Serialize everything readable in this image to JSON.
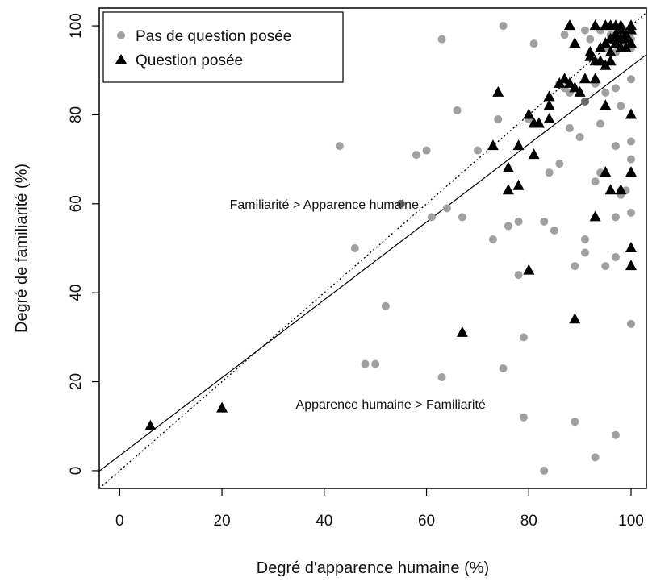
{
  "chart_data": {
    "type": "scatter",
    "title": "",
    "xlabel": "Degré d'apparence humaine (%)",
    "ylabel": "Degré de familiarité (%)",
    "xlim": [
      -4,
      103
    ],
    "ylim": [
      -4,
      104
    ],
    "xticks": [
      "0",
      "20",
      "40",
      "60",
      "80",
      "100"
    ],
    "yticks": [
      "0",
      "20",
      "40",
      "60",
      "80",
      "100"
    ],
    "grid": false,
    "legend_position": "top-left",
    "colors": {
      "no_question": "#a0a0a0",
      "no_question_dark": "#666666",
      "question": "#000000"
    },
    "series": [
      {
        "name": "Pas de question posée",
        "marker": "circle",
        "points": [
          [
            43,
            73
          ],
          [
            46,
            50
          ],
          [
            48,
            24
          ],
          [
            50,
            24
          ],
          [
            52,
            37
          ],
          [
            55,
            60
          ],
          [
            58,
            71
          ],
          [
            60,
            72
          ],
          [
            61,
            57
          ],
          [
            63,
            21
          ],
          [
            63,
            97
          ],
          [
            64,
            59
          ],
          [
            66,
            81
          ],
          [
            67,
            57
          ],
          [
            70,
            72
          ],
          [
            73,
            52
          ],
          [
            74,
            79
          ],
          [
            75,
            100
          ],
          [
            75,
            23
          ],
          [
            76,
            55
          ],
          [
            78,
            56
          ],
          [
            78,
            44
          ],
          [
            79,
            30
          ],
          [
            79,
            12
          ],
          [
            80,
            79
          ],
          [
            81,
            96
          ],
          [
            83,
            56
          ],
          [
            83,
            0
          ],
          [
            84,
            67
          ],
          [
            85,
            54
          ],
          [
            86,
            69
          ],
          [
            86,
            87
          ],
          [
            87,
            98
          ],
          [
            87,
            86
          ],
          [
            88,
            77
          ],
          [
            88,
            85
          ],
          [
            89,
            46
          ],
          [
            89,
            11
          ],
          [
            90,
            75
          ],
          [
            91,
            99
          ],
          [
            91,
            83
          ],
          [
            91,
            52
          ],
          [
            91,
            49
          ],
          [
            92,
            97
          ],
          [
            93,
            92
          ],
          [
            93,
            87
          ],
          [
            93,
            65
          ],
          [
            93,
            3
          ],
          [
            94,
            99
          ],
          [
            94,
            78
          ],
          [
            94,
            67
          ],
          [
            95,
            95
          ],
          [
            95,
            85
          ],
          [
            95,
            46
          ],
          [
            96,
            97
          ],
          [
            96,
            98
          ],
          [
            97,
            94
          ],
          [
            97,
            86
          ],
          [
            97,
            73
          ],
          [
            97,
            57
          ],
          [
            97,
            48
          ],
          [
            97,
            8
          ],
          [
            98,
            96
          ],
          [
            98,
            82
          ],
          [
            98,
            62
          ],
          [
            98,
            63
          ],
          [
            99,
            99
          ],
          [
            99,
            63
          ],
          [
            100,
            97
          ],
          [
            100,
            88
          ],
          [
            100,
            74
          ],
          [
            100,
            70
          ],
          [
            100,
            58
          ],
          [
            100,
            33
          ],
          [
            100,
            95
          ]
        ]
      },
      {
        "name": "Question posée",
        "marker": "triangle",
        "points": [
          [
            6,
            10
          ],
          [
            20,
            14
          ],
          [
            67,
            31
          ],
          [
            73,
            73
          ],
          [
            74,
            85
          ],
          [
            76,
            68
          ],
          [
            76,
            63
          ],
          [
            78,
            73
          ],
          [
            78,
            64
          ],
          [
            80,
            80
          ],
          [
            80,
            45
          ],
          [
            81,
            78
          ],
          [
            81,
            71
          ],
          [
            82,
            78
          ],
          [
            84,
            84
          ],
          [
            84,
            82
          ],
          [
            84,
            79
          ],
          [
            86,
            87
          ],
          [
            87,
            88
          ],
          [
            88,
            100
          ],
          [
            88,
            87
          ],
          [
            89,
            96
          ],
          [
            89,
            86
          ],
          [
            89,
            34
          ],
          [
            90,
            85
          ],
          [
            91,
            88
          ],
          [
            92,
            93
          ],
          [
            92,
            94
          ],
          [
            93,
            92
          ],
          [
            93,
            100
          ],
          [
            93,
            88
          ],
          [
            93,
            57
          ],
          [
            94,
            92
          ],
          [
            94,
            95
          ],
          [
            95,
            91
          ],
          [
            95,
            96
          ],
          [
            95,
            100
          ],
          [
            95,
            82
          ],
          [
            95,
            67
          ],
          [
            96,
            97
          ],
          [
            96,
            92
          ],
          [
            96,
            94
          ],
          [
            96,
            100
          ],
          [
            96,
            63
          ],
          [
            97,
            98
          ],
          [
            97,
            100
          ],
          [
            97,
            96
          ],
          [
            98,
            99
          ],
          [
            98,
            97
          ],
          [
            98,
            95
          ],
          [
            98,
            100
          ],
          [
            98,
            63
          ],
          [
            99,
            98
          ],
          [
            99,
            97
          ],
          [
            99,
            95
          ],
          [
            100,
            99
          ],
          [
            100,
            100
          ],
          [
            100,
            96
          ],
          [
            100,
            80
          ],
          [
            100,
            67
          ],
          [
            100,
            50
          ],
          [
            100,
            46
          ]
        ]
      }
    ],
    "lines": [
      {
        "kind": "identity",
        "style": "dotted",
        "slope": 1,
        "intercept": 0
      },
      {
        "kind": "regression",
        "style": "solid",
        "slope": 0.875,
        "intercept": 3.4
      }
    ],
    "annotations": [
      {
        "text": "Familiarité > Apparence humaine",
        "x": 40,
        "y": 60
      },
      {
        "text": "Apparence humaine > Familiarité",
        "x": 53,
        "y": 15
      }
    ]
  }
}
